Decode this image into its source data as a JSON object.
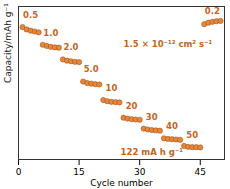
{
  "chart_data": {
    "type": "scatter",
    "x_label": "Cycle number",
    "y_label": "Capacity/mAh g⁻¹",
    "x": [
      1,
      2,
      3,
      4,
      5,
      6,
      7,
      8,
      9,
      10,
      11,
      12,
      13,
      14,
      15,
      16,
      17,
      18,
      19,
      20,
      21,
      22,
      23,
      24,
      25,
      26,
      27,
      28,
      29,
      30,
      31,
      32,
      33,
      34,
      35,
      36,
      37,
      38,
      39,
      40,
      41,
      42,
      43,
      44,
      45,
      46,
      47,
      48,
      49,
      50
    ],
    "values": [
      530,
      522,
      518,
      515,
      512,
      470,
      466,
      463,
      461,
      460,
      420,
      416,
      414,
      412,
      411,
      345,
      340,
      338,
      336,
      335,
      282,
      278,
      276,
      275,
      274,
      222,
      219,
      217,
      216,
      215,
      185,
      182,
      180,
      179,
      178,
      152,
      150,
      149,
      148,
      147,
      126,
      123,
      122,
      122,
      121,
      540,
      545,
      548,
      550,
      551
    ],
    "color": "#e8873a",
    "marker": "circle",
    "xlim": [
      0,
      51
    ],
    "xticks": [
      0,
      15,
      30,
      45
    ],
    "ylim": [
      80,
      600
    ],
    "yticks": [],
    "tick_labels": "x",
    "grid": false,
    "annotations": [
      {
        "text": "0.5",
        "x": 3,
        "y": 570
      },
      {
        "text": "1.0",
        "x": 8,
        "y": 510
      },
      {
        "text": "2.0",
        "x": 13,
        "y": 460
      },
      {
        "text": "5.0",
        "x": 18,
        "y": 385
      },
      {
        "text": "10",
        "x": 23,
        "y": 322
      },
      {
        "text": "20",
        "x": 28,
        "y": 262
      },
      {
        "text": "30",
        "x": 33,
        "y": 225
      },
      {
        "text": "40",
        "x": 38,
        "y": 192
      },
      {
        "text": "50",
        "x": 43,
        "y": 162
      },
      {
        "text": "0.2",
        "x": 48,
        "y": 585
      },
      {
        "text": "122 mA h g⁻¹",
        "x": 33,
        "y": 105
      },
      {
        "text": "1.5 × 10⁻¹² cm² s⁻¹",
        "x": 37,
        "y": 470
      }
    ]
  }
}
